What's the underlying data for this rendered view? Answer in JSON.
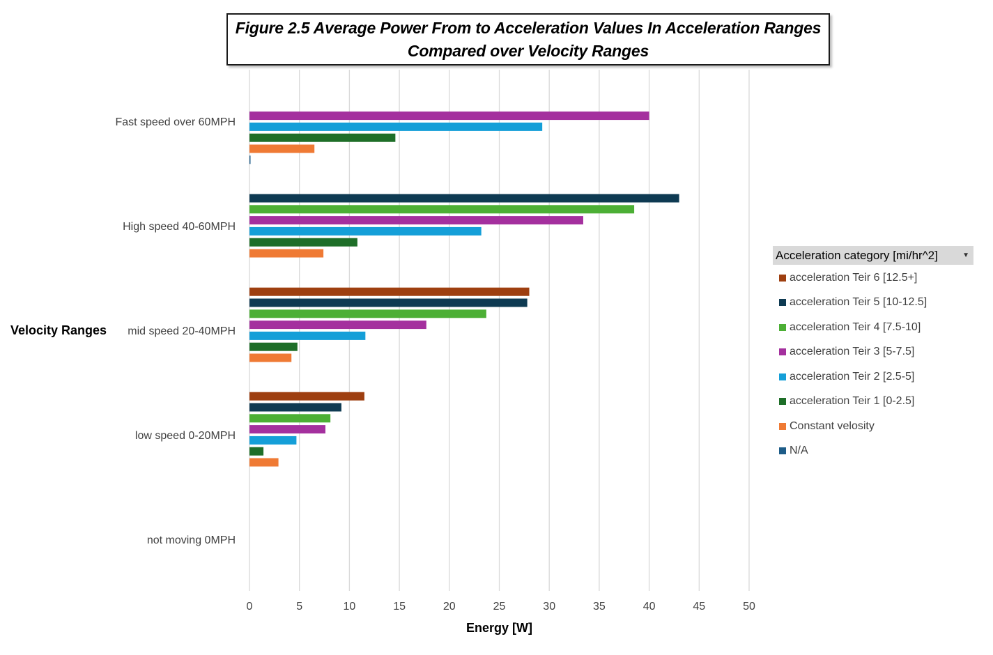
{
  "title": {
    "line1": "Figure 2.5 Average Power From to Acceleration Values In Acceleration Ranges",
    "line2": "Compared over Velocity Ranges"
  },
  "legend": {
    "header": "Acceleration category [mi/hr^2]",
    "dropdown_icon": "chevron-down-icon"
  },
  "chart_data": {
    "type": "bar",
    "orientation": "horizontal",
    "ylabel": "Velocity Ranges",
    "xlabel": "Energy [W]",
    "xlim": [
      0,
      50
    ],
    "xticks": [
      0,
      5,
      10,
      15,
      20,
      25,
      30,
      35,
      40,
      45,
      50
    ],
    "grid": true,
    "legend_position": "right",
    "categories": [
      "Fast speed over 60MPH",
      "High speed 40-60MPH",
      "mid speed 20-40MPH",
      "low speed 0-20MPH",
      "not moving 0MPH"
    ],
    "series": [
      {
        "name": "acceleration Teir 6 [12.5+]",
        "color": "#9e3f10",
        "values": [
          null,
          null,
          28.0,
          11.5,
          null
        ]
      },
      {
        "name": "acceleration Teir 5 [10-12.5]",
        "color": "#0e3a52",
        "values": [
          null,
          43.0,
          27.8,
          9.2,
          null
        ]
      },
      {
        "name": "acceleration Teir 4 [7.5-10]",
        "color": "#4caf35",
        "values": [
          null,
          38.5,
          23.7,
          8.1,
          null
        ]
      },
      {
        "name": "acceleration Teir 3 [5-7.5]",
        "color": "#a4309e",
        "values": [
          40.0,
          33.4,
          17.7,
          7.6,
          null
        ]
      },
      {
        "name": "acceleration Teir 2 [2.5-5]",
        "color": "#159fd8",
        "values": [
          29.3,
          23.2,
          11.6,
          4.7,
          null
        ]
      },
      {
        "name": "acceleration Teir 1 [0-2.5]",
        "color": "#1e6e28",
        "values": [
          14.6,
          10.8,
          4.8,
          1.4,
          null
        ]
      },
      {
        "name": "Constant velosity",
        "color": "#ef7a34",
        "values": [
          6.5,
          7.4,
          4.2,
          2.9,
          null
        ]
      },
      {
        "name": "N/A",
        "color": "#1d5c88",
        "values": [
          0.1,
          null,
          null,
          null,
          null
        ]
      }
    ]
  }
}
